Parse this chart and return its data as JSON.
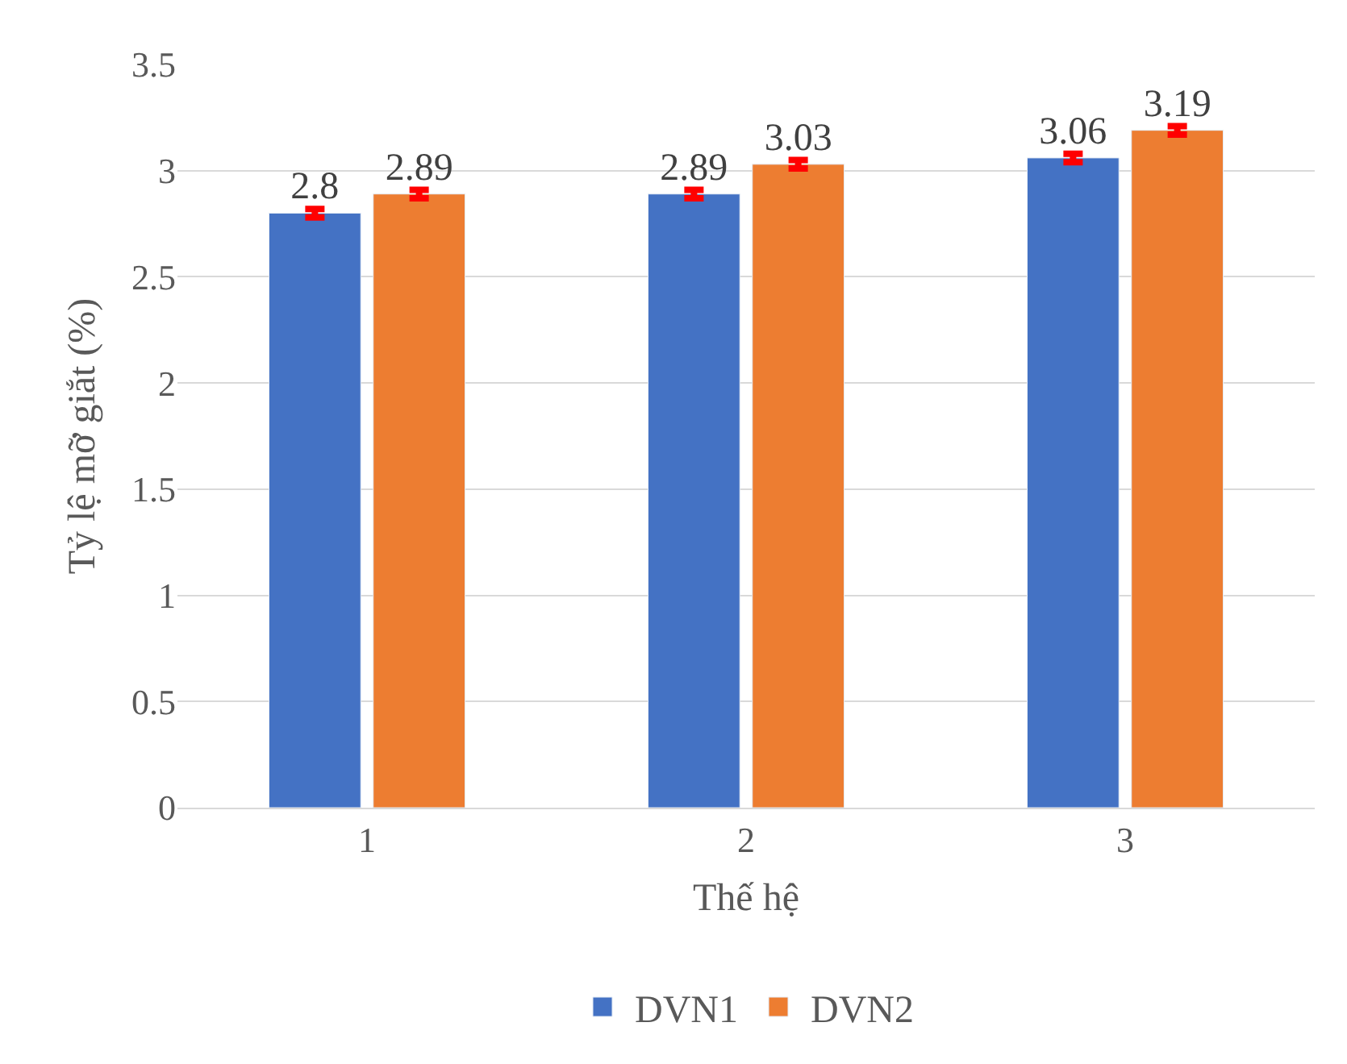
{
  "chart_data": {
    "type": "bar",
    "xlabel": "Thế hệ",
    "ylabel": "Tỷ lệ mỡ giắt (%)",
    "categories": [
      "1",
      "2",
      "3"
    ],
    "series": [
      {
        "name": "DVN1",
        "color": "#4472c4",
        "values": [
          2.8,
          2.89,
          3.06
        ],
        "errors": [
          0.02,
          0.02,
          0.02
        ]
      },
      {
        "name": "DVN2",
        "color": "#ed7d31",
        "values": [
          2.89,
          3.03,
          3.19
        ],
        "errors": [
          0.02,
          0.02,
          0.02
        ]
      }
    ],
    "ylim": [
      0,
      3.5
    ],
    "yticks": [
      0,
      0.5,
      1,
      1.5,
      2,
      2.5,
      3,
      3.5
    ],
    "grid": "y",
    "legend": "bottom",
    "data_labels": true
  }
}
